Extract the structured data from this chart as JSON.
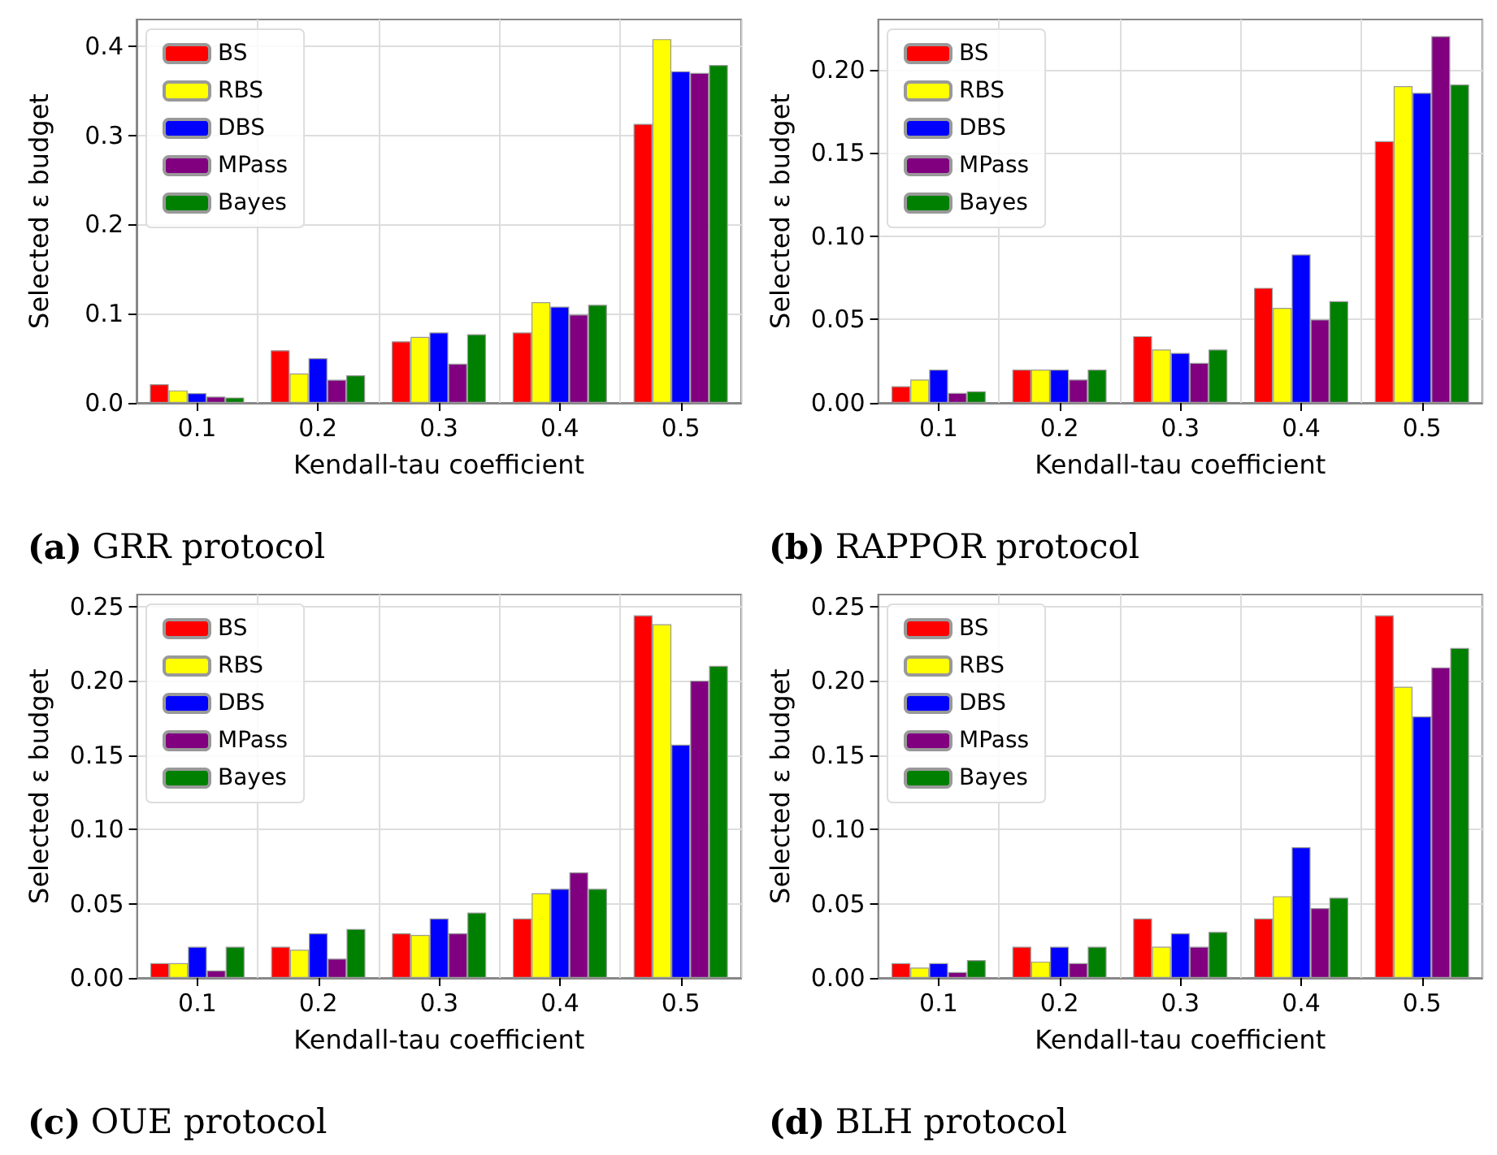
{
  "chart_data": [
    {
      "type": "bar",
      "title": "(a) GRR protocol",
      "xlabel": "Kendall-tau coefficient",
      "ylabel": "Selected ε budget",
      "categories": [
        "0.1",
        "0.2",
        "0.3",
        "0.4",
        "0.5"
      ],
      "ylim": [
        0,
        0.43
      ],
      "yticks": [
        {
          "value": 0,
          "label": "0.0"
        },
        0.1,
        0.2,
        0.3,
        0.4
      ],
      "grid": true,
      "legend": "top left",
      "series": [
        {
          "name": "BS",
          "color": "#ff0000",
          "values": [
            0.021,
            0.059,
            0.069,
            0.079,
            0.313
          ]
        },
        {
          "name": "RBS",
          "color": "#ffff00",
          "values": [
            0.014,
            0.033,
            0.074,
            0.113,
            0.408
          ]
        },
        {
          "name": "DBS",
          "color": "#0000ff",
          "values": [
            0.011,
            0.05,
            0.079,
            0.108,
            0.372
          ]
        },
        {
          "name": "MPass",
          "color": "#800080",
          "values": [
            0.007,
            0.026,
            0.044,
            0.099,
            0.37
          ]
        },
        {
          "name": "Bayes",
          "color": "#008000",
          "values": [
            0.006,
            0.031,
            0.077,
            0.11,
            0.379
          ]
        }
      ]
    },
    {
      "type": "bar",
      "title": "(b) RAPPOR protocol",
      "xlabel": "Kendall-tau coefficient",
      "ylabel": "Selected ε budget",
      "categories": [
        "0.1",
        "0.2",
        "0.3",
        "0.4",
        "0.5"
      ],
      "ylim": [
        0,
        0.23
      ],
      "yticks": [
        {
          "value": 0,
          "label": "0.00"
        },
        0.05,
        {
          "value": 0.1,
          "label": "0.10"
        },
        0.15,
        {
          "value": 0.2,
          "label": "0.20"
        }
      ],
      "grid": true,
      "legend": "top left",
      "series": [
        {
          "name": "BS",
          "color": "#ff0000",
          "values": [
            0.01,
            0.02,
            0.04,
            0.069,
            0.157
          ]
        },
        {
          "name": "RBS",
          "color": "#ffff00",
          "values": [
            0.014,
            0.02,
            0.032,
            0.057,
            0.19
          ]
        },
        {
          "name": "DBS",
          "color": "#0000ff",
          "values": [
            0.02,
            0.02,
            0.03,
            0.089,
            0.186
          ]
        },
        {
          "name": "MPass",
          "color": "#800080",
          "values": [
            0.006,
            0.014,
            0.024,
            0.05,
            0.22
          ]
        },
        {
          "name": "Bayes",
          "color": "#008000",
          "values": [
            0.007,
            0.02,
            0.032,
            0.061,
            0.191
          ]
        }
      ]
    },
    {
      "type": "bar",
      "title": "(c) OUE protocol",
      "xlabel": "Kendall-tau coefficient",
      "ylabel": "Selected ε budget",
      "categories": [
        "0.1",
        "0.2",
        "0.3",
        "0.4",
        "0.5"
      ],
      "ylim": [
        0,
        0.258
      ],
      "yticks": [
        {
          "value": 0,
          "label": "0.00"
        },
        0.05,
        {
          "value": 0.1,
          "label": "0.10"
        },
        0.15,
        {
          "value": 0.2,
          "label": "0.20"
        },
        0.25
      ],
      "grid": true,
      "legend": "top left",
      "series": [
        {
          "name": "BS",
          "color": "#ff0000",
          "values": [
            0.01,
            0.021,
            0.03,
            0.04,
            0.244
          ]
        },
        {
          "name": "RBS",
          "color": "#ffff00",
          "values": [
            0.01,
            0.019,
            0.029,
            0.057,
            0.238
          ]
        },
        {
          "name": "DBS",
          "color": "#0000ff",
          "values": [
            0.021,
            0.03,
            0.04,
            0.06,
            0.157
          ]
        },
        {
          "name": "MPass",
          "color": "#800080",
          "values": [
            0.005,
            0.013,
            0.03,
            0.071,
            0.2
          ]
        },
        {
          "name": "Bayes",
          "color": "#008000",
          "values": [
            0.021,
            0.033,
            0.044,
            0.06,
            0.21
          ]
        }
      ]
    },
    {
      "type": "bar",
      "title": "(d) BLH protocol",
      "xlabel": "Kendall-tau coefficient",
      "ylabel": "Selected ε budget",
      "categories": [
        "0.1",
        "0.2",
        "0.3",
        "0.4",
        "0.5"
      ],
      "ylim": [
        0,
        0.258
      ],
      "yticks": [
        {
          "value": 0,
          "label": "0.00"
        },
        0.05,
        {
          "value": 0.1,
          "label": "0.10"
        },
        0.15,
        {
          "value": 0.2,
          "label": "0.20"
        },
        0.25
      ],
      "grid": true,
      "legend": "top left",
      "series": [
        {
          "name": "BS",
          "color": "#ff0000",
          "values": [
            0.01,
            0.021,
            0.04,
            0.04,
            0.244
          ]
        },
        {
          "name": "RBS",
          "color": "#ffff00",
          "values": [
            0.007,
            0.011,
            0.021,
            0.055,
            0.196
          ]
        },
        {
          "name": "DBS",
          "color": "#0000ff",
          "values": [
            0.01,
            0.021,
            0.03,
            0.088,
            0.176
          ]
        },
        {
          "name": "MPass",
          "color": "#800080",
          "values": [
            0.004,
            0.01,
            0.021,
            0.047,
            0.209
          ]
        },
        {
          "name": "Bayes",
          "color": "#008000",
          "values": [
            0.012,
            0.021,
            0.031,
            0.054,
            0.222
          ]
        }
      ]
    }
  ]
}
